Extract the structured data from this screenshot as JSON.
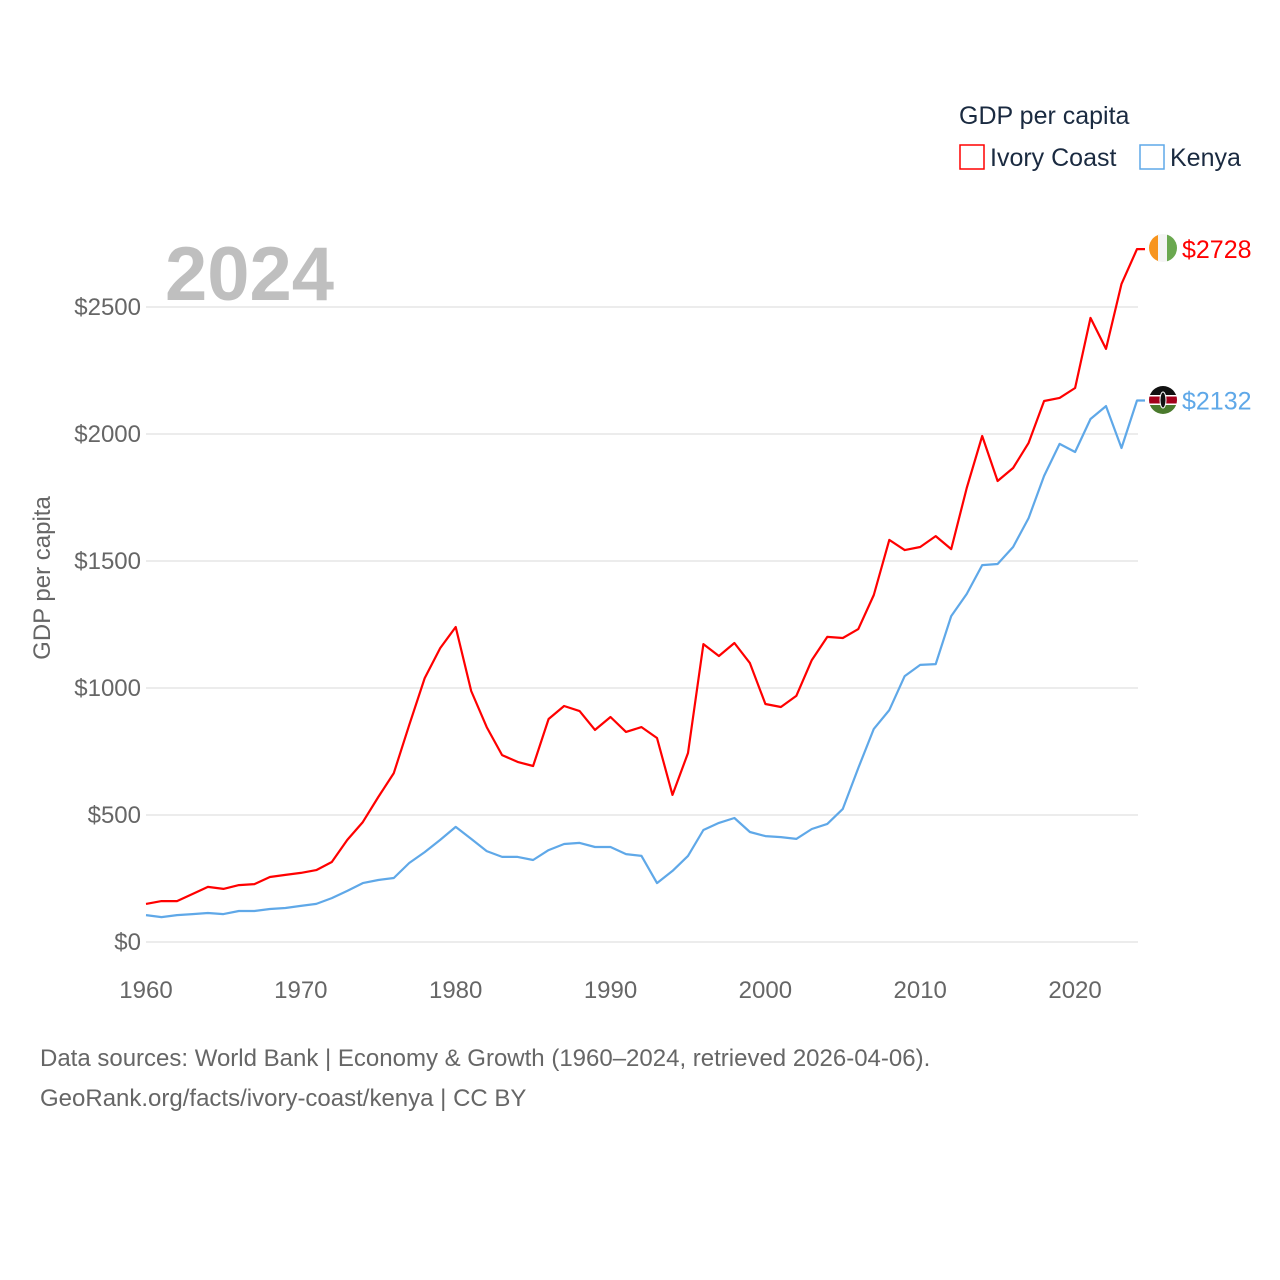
{
  "chart_data": {
    "type": "line",
    "title": "GDP per capita",
    "year_label": "2024",
    "ylabel": "GDP per capita",
    "xlabel": "",
    "xlim": [
      1960,
      2024
    ],
    "ylim": [
      0,
      2500
    ],
    "x_ticks": [
      "1960",
      "1970",
      "1980",
      "1990",
      "2000",
      "2010",
      "2020"
    ],
    "x_tick_values": [
      1960,
      1970,
      1980,
      1990,
      2000,
      2010,
      2020
    ],
    "y_ticks": [
      "$0",
      "$500",
      "$1000",
      "$1500",
      "$2000",
      "$2500"
    ],
    "y_tick_values": [
      0,
      500,
      1000,
      1500,
      2000,
      2500
    ],
    "grid": true,
    "legend_placement": "top-right",
    "x_start": 1960,
    "series": [
      {
        "name": "Ivory Coast",
        "color": "#ff0000",
        "end_label": "$2728",
        "flag": "ivory-coast-flag",
        "values": [
          150,
          161,
          161,
          189,
          217,
          209,
          224,
          228,
          256,
          264,
          272,
          283,
          315,
          402,
          472,
          571,
          665,
          854,
          1039,
          1157,
          1240,
          988,
          846,
          736,
          709,
          693,
          878,
          929,
          909,
          835,
          886,
          827,
          846,
          803,
          579,
          744,
          1173,
          1126,
          1177,
          1098,
          937,
          925,
          969,
          1110,
          1201,
          1197,
          1232,
          1366,
          1583,
          1543,
          1555,
          1598,
          1547,
          1787,
          1992,
          1815,
          1866,
          1965,
          2130,
          2142,
          2181,
          2457,
          2335,
          2591,
          2728
        ]
      },
      {
        "name": "Kenya",
        "color": "#5fa8e8",
        "end_label": "$2132",
        "flag": "kenya-flag",
        "values": [
          106,
          98,
          106,
          110,
          114,
          110,
          122,
          122,
          130,
          134,
          142,
          150,
          173,
          201,
          232,
          244,
          252,
          311,
          354,
          402,
          453,
          406,
          358,
          335,
          335,
          323,
          362,
          386,
          390,
          374,
          374,
          346,
          339,
          232,
          280,
          339,
          441,
          469,
          488,
          433,
          417,
          413,
          406,
          445,
          465,
          524,
          685,
          839,
          913,
          1047,
          1091,
          1094,
          1283,
          1370,
          1484,
          1488,
          1555,
          1669,
          1835,
          1961,
          1929,
          2059,
          2110,
          1945,
          2132
        ]
      }
    ]
  },
  "footer": {
    "line1": "Data sources: World Bank | Economy & Growth (1960–2024, retrieved 2026-04-06).",
    "line2": "GeoRank.org/facts/ivory-coast/kenya | CC BY"
  }
}
